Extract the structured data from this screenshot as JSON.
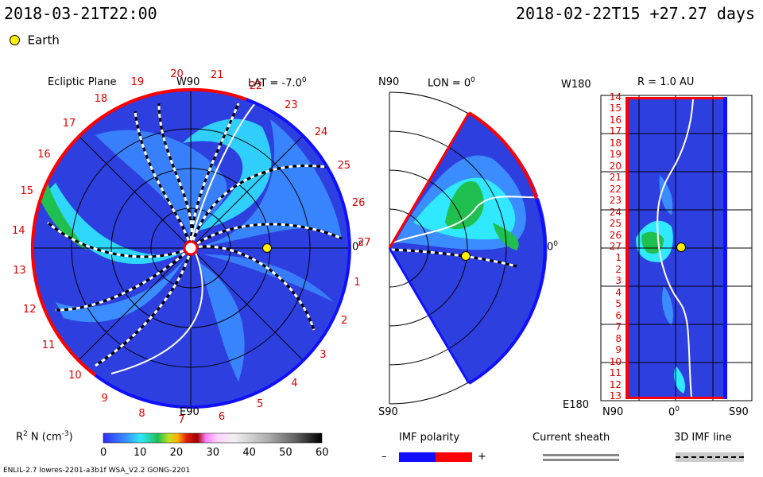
{
  "header": {
    "left_time": "2018-03-21T22:00",
    "right_time": "2018-02-22T15 +27.27 days",
    "earth_label": "Earth"
  },
  "ecliptic": {
    "title": "Ecliptic Plane",
    "w90": "W90",
    "lat": "LAT = -7.0",
    "lat_sup": "0",
    "zero": "0",
    "zero_sup": "0",
    "e90": "E90",
    "ring_labels": [
      "19",
      "20",
      "21",
      "22",
      "23",
      "24",
      "25",
      "26",
      "27",
      "1",
      "2",
      "3",
      "4",
      "5",
      "6",
      "7",
      "8",
      "9",
      "10",
      "11",
      "12",
      "13",
      "14",
      "15",
      "16",
      "17",
      "18"
    ]
  },
  "meridional": {
    "n90": "N90",
    "lon": "LON = 0",
    "lon_sup": "0",
    "zero": "0",
    "zero_sup": "0",
    "s90": "S90"
  },
  "radial": {
    "w180": "W180",
    "r": "R = 1.0 AU",
    "e180": "E180",
    "n90": "N90",
    "zero": "0",
    "zero_sup": "0",
    "s90": "S90",
    "row_labels": [
      "14",
      "15",
      "16",
      "17",
      "18",
      "19",
      "20",
      "21",
      "22",
      "23",
      "24",
      "25",
      "26",
      "27",
      "1",
      "2",
      "3",
      "4",
      "5",
      "6",
      "7",
      "8",
      "9",
      "10",
      "11",
      "12",
      "13"
    ]
  },
  "legend": {
    "density_label": "R",
    "density_sup": "2",
    "density_unit": " N (cm",
    "density_unit_sup": "-3",
    "density_unit_end": ")",
    "ticks": [
      "0",
      "10",
      "20",
      "30",
      "40",
      "50",
      "60"
    ],
    "imf_title": "IMF polarity",
    "imf_minus": "–",
    "imf_plus": "+",
    "sheath_title": "Current sheath",
    "imf3d_title": "3D IMF line"
  },
  "footer": {
    "model": "ENLIL-2.7 lowres-2201-a3b1f WSA_V2.2 GONG-2201"
  },
  "colors": {
    "field_blue": "#2e3fe0",
    "cyan": "#30e8ff",
    "green": "#20c050",
    "red": "#ff0000",
    "blue_edge": "#1010ff",
    "earth": "#ffee00"
  }
}
